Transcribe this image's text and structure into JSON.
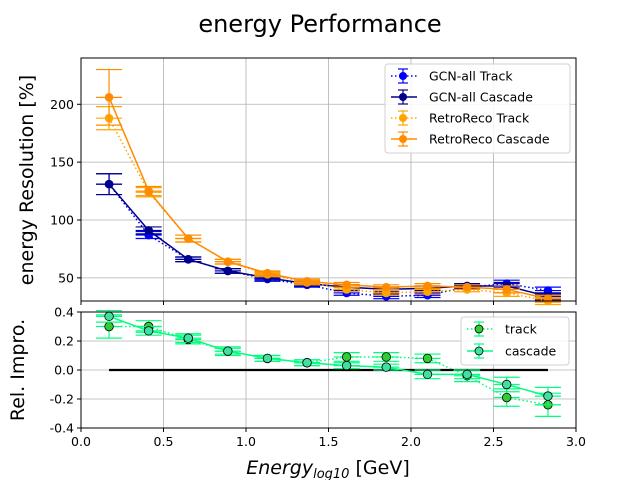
{
  "figure_title": "energy Performance",
  "chart_data": [
    {
      "type": "line",
      "ylabel": "energy Resolution [%]",
      "xlim": [
        0.0,
        3.0
      ],
      "ylim": [
        30,
        240
      ],
      "yticks": [
        50,
        100,
        150,
        200
      ],
      "grid": true,
      "legend_position": "top-right",
      "series": [
        {
          "name": "GCN-all Track",
          "color": "#0000ff",
          "dash": true,
          "x": [
            0.17,
            0.41,
            0.65,
            0.89,
            1.13,
            1.37,
            1.61,
            1.85,
            2.1,
            2.34,
            2.58,
            2.83
          ],
          "y": [
            131,
            87,
            66,
            56,
            49,
            44,
            37,
            34,
            35,
            42,
            45,
            39
          ],
          "err": [
            9,
            3,
            2,
            2,
            2,
            2,
            2,
            2,
            2,
            2,
            3,
            3
          ]
        },
        {
          "name": "GCN-all Cascade",
          "color": "#00008b",
          "dash": false,
          "x": [
            0.17,
            0.41,
            0.65,
            0.89,
            1.13,
            1.37,
            1.61,
            1.85,
            2.1,
            2.34,
            2.58,
            2.83
          ],
          "y": [
            131,
            91,
            66,
            56,
            50,
            45,
            42,
            40,
            41,
            43,
            43,
            34
          ],
          "err": [
            9,
            3,
            2,
            2,
            2,
            2,
            2,
            2,
            2,
            2,
            3,
            3
          ]
        },
        {
          "name": "RetroReco Track",
          "color": "#ffa500",
          "dash": true,
          "x": [
            0.17,
            0.41,
            0.65,
            0.89,
            1.13,
            1.37,
            1.61,
            1.85,
            2.1,
            2.34,
            2.58,
            2.83
          ],
          "y": [
            188,
            124,
            84,
            64,
            53,
            46,
            40,
            37,
            38,
            40,
            37,
            30
          ],
          "err": [
            10,
            4,
            3,
            2,
            2,
            2,
            2,
            2,
            2,
            2,
            3,
            3
          ]
        },
        {
          "name": "RetroReco Cascade",
          "color": "#ff8c00",
          "dash": false,
          "x": [
            0.17,
            0.41,
            0.65,
            0.89,
            1.13,
            1.37,
            1.61,
            1.85,
            2.1,
            2.34,
            2.58,
            2.83
          ],
          "y": [
            206,
            125,
            84,
            64,
            54,
            47,
            44,
            42,
            43,
            42,
            40,
            32
          ],
          "err": [
            24,
            4,
            3,
            2,
            2,
            2,
            2,
            2,
            2,
            2,
            3,
            3
          ]
        }
      ]
    },
    {
      "type": "line",
      "xlabel_base": "Energy",
      "xlabel_sub": "log10",
      "xlabel_unit": "[GeV]",
      "ylabel": "Rel. Impro.",
      "xlim": [
        0.0,
        3.0
      ],
      "ylim": [
        -0.4,
        0.4
      ],
      "xticks": [
        0.0,
        0.5,
        1.0,
        1.5,
        2.0,
        2.5,
        3.0
      ],
      "yticks": [
        -0.4,
        -0.2,
        0.0,
        0.2,
        0.4
      ],
      "grid": true,
      "legend_position": "top-right",
      "reference_line": {
        "y": 0.0,
        "x_from": 0.17,
        "x_to": 2.83,
        "color": "#000000"
      },
      "series": [
        {
          "name": "track",
          "color": "#00ff7f",
          "marker_fill": "#32cd32",
          "dash": true,
          "x": [
            0.17,
            0.41,
            0.65,
            0.89,
            1.13,
            1.37,
            1.61,
            1.85,
            2.1,
            2.34,
            2.58,
            2.83
          ],
          "y": [
            0.3,
            0.3,
            0.21,
            0.13,
            0.08,
            0.05,
            0.09,
            0.09,
            0.08,
            -0.04,
            -0.19,
            -0.24
          ],
          "err": [
            0.08,
            0.04,
            0.03,
            0.03,
            0.02,
            0.02,
            0.03,
            0.03,
            0.03,
            0.04,
            0.06,
            0.08
          ]
        },
        {
          "name": "cascade",
          "color": "#00ff7f",
          "marker_fill": "#40e0a0",
          "dash": false,
          "x": [
            0.17,
            0.41,
            0.65,
            0.89,
            1.13,
            1.37,
            1.61,
            1.85,
            2.1,
            2.34,
            2.58,
            2.83
          ],
          "y": [
            0.37,
            0.27,
            0.22,
            0.13,
            0.08,
            0.05,
            0.03,
            0.02,
            -0.03,
            -0.03,
            -0.1,
            -0.18
          ],
          "err": [
            0.04,
            0.03,
            0.03,
            0.02,
            0.02,
            0.02,
            0.02,
            0.02,
            0.03,
            0.03,
            0.05,
            0.06
          ]
        }
      ]
    }
  ]
}
